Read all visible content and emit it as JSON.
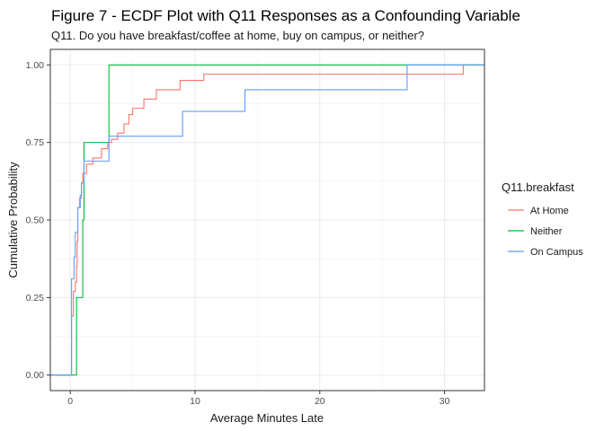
{
  "chart_data": {
    "type": "line",
    "subtype": "step-ecdf",
    "title": "Figure 7 - ECDF Plot with Q11 Responses as a Confounding Variable",
    "subtitle": "Q11. Do you have breakfast/coffee at home, buy on campus, or neither?",
    "xlabel": "Average Minutes Late",
    "ylabel": "Cumulative Probability",
    "xlim": [
      -1.6,
      33.2
    ],
    "ylim": [
      -0.05,
      1.05
    ],
    "x_ticks": [
      0,
      10,
      20,
      30
    ],
    "x_tick_labels": [
      "0",
      "10",
      "20",
      "30"
    ],
    "y_ticks": [
      0,
      0.25,
      0.5,
      0.75,
      1.0
    ],
    "y_tick_labels": [
      "0.00",
      "0.25",
      "0.50",
      "0.75",
      "1.00"
    ],
    "grid": true,
    "legend": {
      "title": "Q11.breakfast",
      "position": "right"
    },
    "series": [
      {
        "name": "At Home",
        "color": "#F8766D",
        "points": [
          [
            0.1,
            0.19
          ],
          [
            0.25,
            0.27
          ],
          [
            0.4,
            0.3
          ],
          [
            0.5,
            0.35
          ],
          [
            0.55,
            0.43
          ],
          [
            0.6,
            0.54
          ],
          [
            0.75,
            0.57
          ],
          [
            0.9,
            0.62
          ],
          [
            1.0,
            0.65
          ],
          [
            1.3,
            0.68
          ],
          [
            1.8,
            0.7
          ],
          [
            2.5,
            0.73
          ],
          [
            3.0,
            0.75
          ],
          [
            3.3,
            0.76
          ],
          [
            3.8,
            0.78
          ],
          [
            4.3,
            0.81
          ],
          [
            4.7,
            0.84
          ],
          [
            5.0,
            0.86
          ],
          [
            5.9,
            0.89
          ],
          [
            6.9,
            0.92
          ],
          [
            8.8,
            0.95
          ],
          [
            10.7,
            0.97
          ],
          [
            31.5,
            1.0
          ]
        ],
        "x_end": 33.2
      },
      {
        "name": "Neither",
        "color": "#00BA38",
        "points": [
          [
            0.5,
            0.25
          ],
          [
            1.0,
            0.5
          ],
          [
            1.1,
            0.75
          ],
          [
            3.1,
            1.0
          ]
        ],
        "x_end": 33.2
      },
      {
        "name": "On Campus",
        "color": "#619CFF",
        "points": [
          [
            0.1,
            0.31
          ],
          [
            0.3,
            0.38
          ],
          [
            0.4,
            0.46
          ],
          [
            0.6,
            0.54
          ],
          [
            0.8,
            0.58
          ],
          [
            0.9,
            0.62
          ],
          [
            1.1,
            0.69
          ],
          [
            3.1,
            0.77
          ],
          [
            9.0,
            0.85
          ],
          [
            14.0,
            0.92
          ],
          [
            27.0,
            1.0
          ]
        ],
        "x_end": 33.2
      }
    ]
  }
}
